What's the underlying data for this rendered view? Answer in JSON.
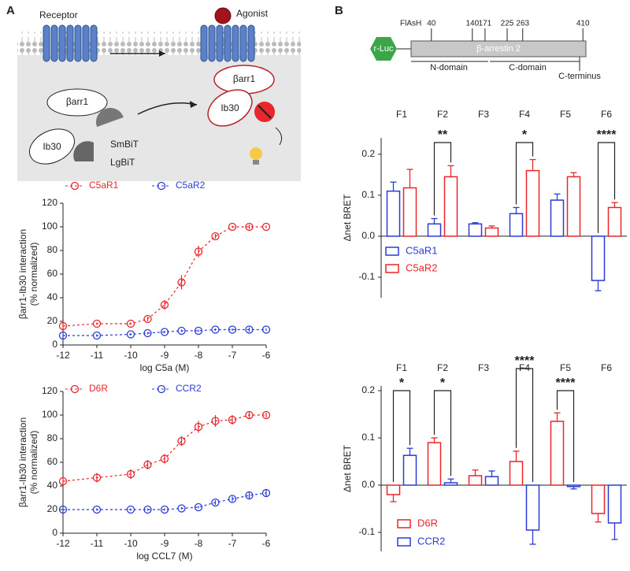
{
  "panels": {
    "a": "A",
    "b": "B"
  },
  "diagram_a": {
    "receptor": "Receptor",
    "agonist": "Agonist",
    "barr1_left": "βarr1",
    "ib30_left": "Ib30",
    "smbit": "SmBiT",
    "lgbit": "LgBiT",
    "barr1_right": "βarr1",
    "ib30_right": "Ib30"
  },
  "diagram_b": {
    "rluc": "r-Luc",
    "flash": "FlAsH",
    "protein": "β-arrestin 2",
    "positions": [
      40,
      140,
      171,
      225,
      263,
      410
    ],
    "n_domain": "N-domain",
    "c_domain": "C-domain",
    "c_terminus": "C-terminus"
  },
  "chart_data": [
    {
      "type": "line",
      "xlabel": "log C5a (M)",
      "ylabel": [
        "βarr1-Ib30 interaction",
        "(% normalized)"
      ],
      "x": [
        -12,
        -11,
        -10,
        -9.5,
        -9,
        -8.5,
        -8,
        -7.5,
        -7,
        -6.5,
        -6
      ],
      "xlim": [
        -12,
        -6
      ],
      "xticks": [
        -12,
        -11,
        -10,
        -9,
        -8,
        -7,
        -6
      ],
      "ylim": [
        0,
        120
      ],
      "yticks": [
        0,
        20,
        40,
        60,
        80,
        100,
        120
      ],
      "series": [
        {
          "name": "C5aR1",
          "color": "#e8262b",
          "values": [
            16,
            18,
            18,
            22,
            34,
            53,
            79,
            92,
            100,
            100,
            100
          ],
          "errors": [
            2,
            1,
            1,
            2,
            4,
            6,
            5,
            2,
            1,
            2,
            1
          ]
        },
        {
          "name": "C5aR2",
          "color": "#2b3bd6",
          "values": [
            8,
            8,
            9,
            10,
            11,
            12,
            12,
            13,
            13,
            13,
            13
          ],
          "errors": [
            1,
            1,
            1,
            1,
            1,
            1,
            1,
            1,
            1,
            2,
            1
          ]
        }
      ]
    },
    {
      "type": "line",
      "xlabel": "log CCL7 (M)",
      "ylabel": [
        "βarr1-Ib30 interaction",
        "(% normalized)"
      ],
      "x": [
        -12,
        -11,
        -10,
        -9.5,
        -9,
        -8.5,
        -8,
        -7.5,
        -7,
        -6.5,
        -6
      ],
      "xlim": [
        -12,
        -6
      ],
      "xticks": [
        -12,
        -11,
        -10,
        -9,
        -8,
        -7,
        -6
      ],
      "ylim": [
        0,
        120
      ],
      "yticks": [
        0,
        20,
        40,
        60,
        80,
        100,
        120
      ],
      "series": [
        {
          "name": "D6R",
          "color": "#e8262b",
          "values": [
            44,
            47,
            50,
            58,
            63,
            78,
            90,
            95,
            96,
            100,
            100
          ],
          "errors": [
            3,
            4,
            4,
            4,
            4,
            4,
            5,
            5,
            4,
            3,
            2
          ]
        },
        {
          "name": "CCR2",
          "color": "#2b3bd6",
          "values": [
            20,
            20,
            20,
            20,
            20,
            21,
            22,
            26,
            29,
            32,
            34
          ],
          "errors": [
            1,
            1,
            1,
            1,
            1,
            1,
            1,
            2,
            2,
            3,
            3
          ]
        }
      ]
    },
    {
      "type": "bar",
      "ylabel": "Δnet BRET",
      "categories": [
        "F1",
        "F2",
        "F3",
        "F4",
        "F5",
        "F6"
      ],
      "ylim": [
        -0.15,
        0.24
      ],
      "yticks": [
        -0.1,
        {
          "value": 0,
          "label": "0.0"
        },
        0.1,
        0.2
      ],
      "series": [
        {
          "name": "C5aR1",
          "color": "#2b3bd6",
          "values": [
            0.11,
            0.03,
            0.03,
            0.055,
            0.088,
            -0.108
          ],
          "errors": [
            0.022,
            0.013,
            0.003,
            0.015,
            0.015,
            0.025
          ]
        },
        {
          "name": "C5aR2",
          "color": "#e8262b",
          "values": [
            0.118,
            0.145,
            0.02,
            0.16,
            0.145,
            0.07
          ],
          "errors": [
            0.045,
            0.027,
            0.005,
            0.027,
            0.01,
            0.012
          ]
        }
      ],
      "significance": [
        {
          "category": "F2",
          "label": "**"
        },
        {
          "category": "F4",
          "label": "*"
        },
        {
          "category": "F6",
          "label": "****"
        }
      ]
    },
    {
      "type": "bar",
      "ylabel": "Δnet BRET",
      "categories": [
        "F1",
        "F2",
        "F3",
        "F4",
        "F5",
        "F6"
      ],
      "ylim": [
        -0.14,
        0.21
      ],
      "yticks": [
        -0.1,
        {
          "value": 0,
          "label": "0.0"
        },
        0.1,
        0.2
      ],
      "series": [
        {
          "name": "D6R",
          "color": "#e8262b",
          "values": [
            -0.02,
            0.09,
            0.02,
            0.05,
            0.135,
            -0.06
          ],
          "errors": [
            0.015,
            0.01,
            0.012,
            0.022,
            0.018,
            0.018
          ]
        },
        {
          "name": "CCR2",
          "color": "#2b3bd6",
          "values": [
            0.063,
            0.005,
            0.018,
            -0.095,
            -0.003,
            -0.08
          ],
          "errors": [
            0.015,
            0.008,
            0.012,
            0.03,
            0.005,
            0.035
          ]
        }
      ],
      "significance": [
        {
          "category": "F1",
          "label": "*"
        },
        {
          "category": "F2",
          "label": "*"
        },
        {
          "category": "F4",
          "label": "****"
        },
        {
          "category": "F5",
          "label": "****"
        }
      ]
    }
  ]
}
